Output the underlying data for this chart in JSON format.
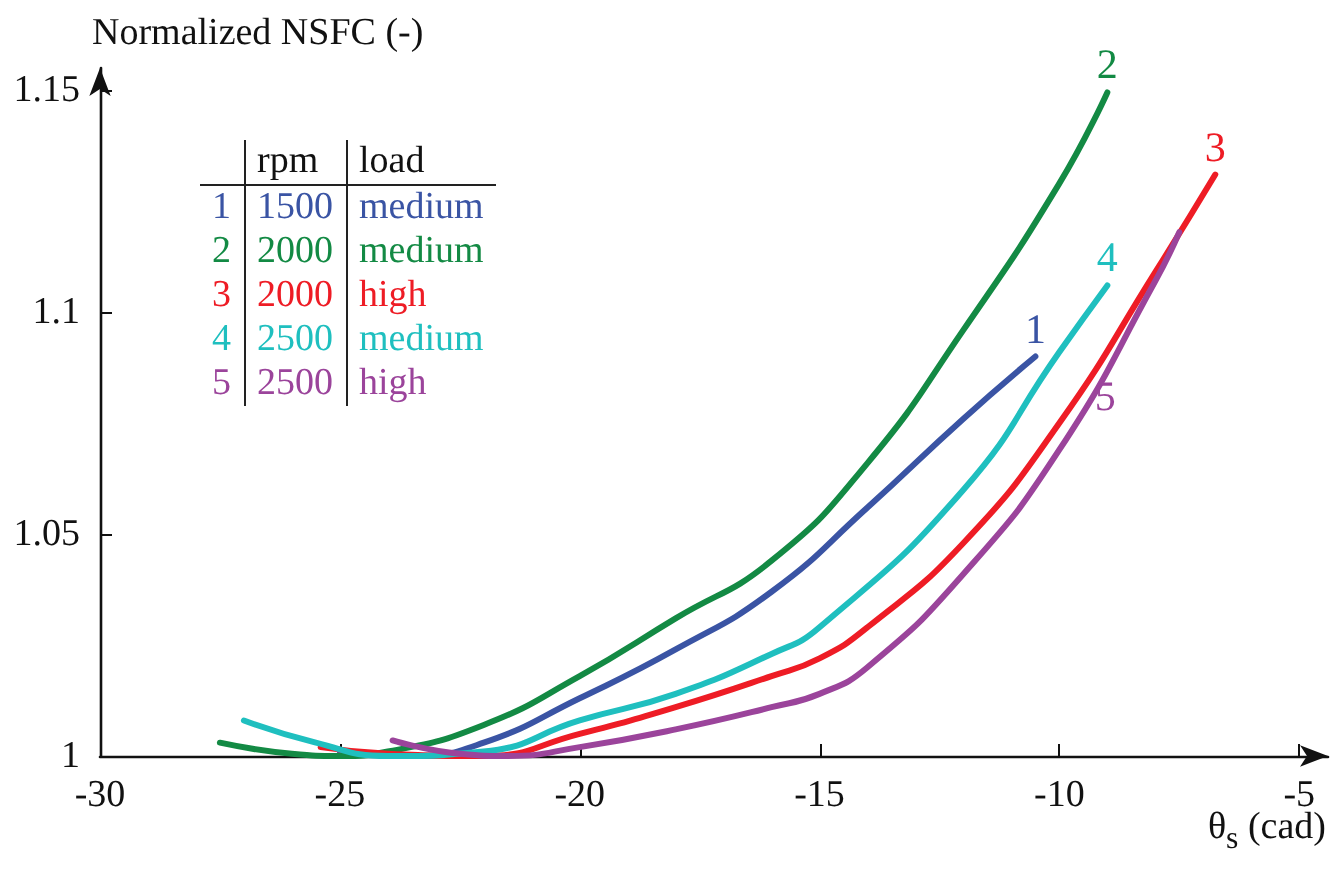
{
  "chart_data": {
    "type": "line",
    "xlabel": "θ$_{s}$ (cad)",
    "ylabel": "Normalized NSFC (-)",
    "xlim": [
      -30,
      -4.4
    ],
    "xticks": [
      -30,
      -25,
      -20,
      -15,
      -10,
      -5
    ],
    "ylim": [
      1,
      1.155
    ],
    "yticks": [
      1,
      1.05,
      1.1,
      1.15
    ],
    "grid": false,
    "marker": "none",
    "line_style": "solid",
    "annotations": [
      "rpm",
      "load",
      "1500",
      "medium",
      "2000",
      "medium",
      "2000",
      "high",
      "2500",
      "medium",
      "2500",
      "high"
    ],
    "series": [
      {
        "name": "1",
        "color": "#3a54a4",
        "x": [
          -25,
          -23.5,
          -22,
          -20,
          -18,
          -16,
          -14,
          -12,
          -10.5
        ],
        "values": [
          1.001,
          1.0,
          1.003,
          1.013,
          1.024,
          1.037,
          1.056,
          1.076,
          1.09
        ]
      },
      {
        "name": "2",
        "color": "#138a44",
        "x": [
          -27.5,
          -26,
          -25,
          -24,
          -22,
          -20,
          -18,
          -16,
          -14,
          -12,
          -10,
          -9
        ],
        "values": [
          1.003,
          1.0005,
          1.0,
          1.001,
          1.007,
          1.018,
          1.031,
          1.044,
          1.066,
          1.096,
          1.129,
          1.1495
        ]
      },
      {
        "name": "3",
        "color": "#ee1c25",
        "x": [
          -25.4,
          -24,
          -22,
          -20,
          -18,
          -16,
          -15,
          -14,
          -12,
          -10,
          -8,
          -6.75
        ],
        "values": [
          1.002,
          1.0005,
          1.0,
          1.005,
          1.011,
          1.018,
          1.022,
          1.029,
          1.048,
          1.075,
          1.109,
          1.131
        ]
      },
      {
        "name": "4",
        "color": "#1fbfbf",
        "x": [
          -27,
          -25.5,
          -24,
          -22,
          -20,
          -18,
          -16,
          -15,
          -12,
          -10,
          -9
        ],
        "values": [
          1.008,
          1.003,
          1.0,
          1.001,
          1.008,
          1.014,
          1.023,
          1.029,
          1.06,
          1.091,
          1.106
        ]
      },
      {
        "name": "5",
        "color": "#9b449b",
        "x": [
          -23.9,
          -22.5,
          -21.5,
          -20,
          -18,
          -16,
          -15,
          -14,
          -12,
          -10,
          -8,
          -7.5
        ],
        "values": [
          1.0035,
          1.0005,
          1.0,
          1.002,
          1.006,
          1.011,
          1.014,
          1.02,
          1.041,
          1.069,
          1.107,
          1.118
        ]
      }
    ]
  }
}
